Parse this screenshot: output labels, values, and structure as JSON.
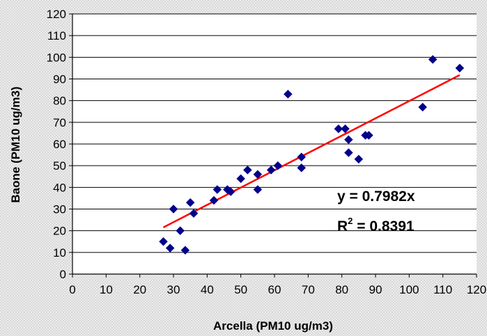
{
  "chart_data": {
    "type": "scatter",
    "title": "",
    "xlabel": "Arcella (PM10 ug/m3)",
    "ylabel": "Baone (PM10 ug/m3)",
    "xlim": [
      0,
      120
    ],
    "ylim": [
      0,
      120
    ],
    "x_ticks": [
      0,
      10,
      20,
      30,
      40,
      50,
      60,
      70,
      80,
      90,
      100,
      110,
      120
    ],
    "y_ticks": [
      0,
      10,
      20,
      30,
      40,
      50,
      60,
      70,
      80,
      90,
      100,
      110,
      120
    ],
    "grid": "horizontal",
    "legend": "none",
    "marker": "diamond",
    "marker_color": "#00008b",
    "trendline_color": "#ff0000",
    "points": [
      {
        "x": 27,
        "y": 15
      },
      {
        "x": 29,
        "y": 12
      },
      {
        "x": 30,
        "y": 30
      },
      {
        "x": 32,
        "y": 20
      },
      {
        "x": 33.5,
        "y": 11
      },
      {
        "x": 35,
        "y": 33
      },
      {
        "x": 36,
        "y": 28
      },
      {
        "x": 42,
        "y": 34
      },
      {
        "x": 43,
        "y": 39
      },
      {
        "x": 46,
        "y": 39
      },
      {
        "x": 47,
        "y": 38
      },
      {
        "x": 50,
        "y": 44
      },
      {
        "x": 52,
        "y": 48
      },
      {
        "x": 55,
        "y": 46
      },
      {
        "x": 55,
        "y": 39
      },
      {
        "x": 59,
        "y": 48
      },
      {
        "x": 61,
        "y": 50
      },
      {
        "x": 64,
        "y": 83
      },
      {
        "x": 68,
        "y": 54
      },
      {
        "x": 68,
        "y": 49
      },
      {
        "x": 79,
        "y": 67
      },
      {
        "x": 81,
        "y": 67
      },
      {
        "x": 82,
        "y": 62
      },
      {
        "x": 82,
        "y": 56
      },
      {
        "x": 85,
        "y": 53
      },
      {
        "x": 87,
        "y": 64
      },
      {
        "x": 88,
        "y": 64
      },
      {
        "x": 104,
        "y": 77
      },
      {
        "x": 107,
        "y": 99
      },
      {
        "x": 115,
        "y": 95
      }
    ],
    "trendline": {
      "slope": 0.7982,
      "x_range": [
        27,
        115
      ]
    },
    "annotation": {
      "equation": "y = 0.7982x",
      "r2_label": "R",
      "r2_sup": "2",
      "r2_value": " = 0.8391"
    }
  }
}
